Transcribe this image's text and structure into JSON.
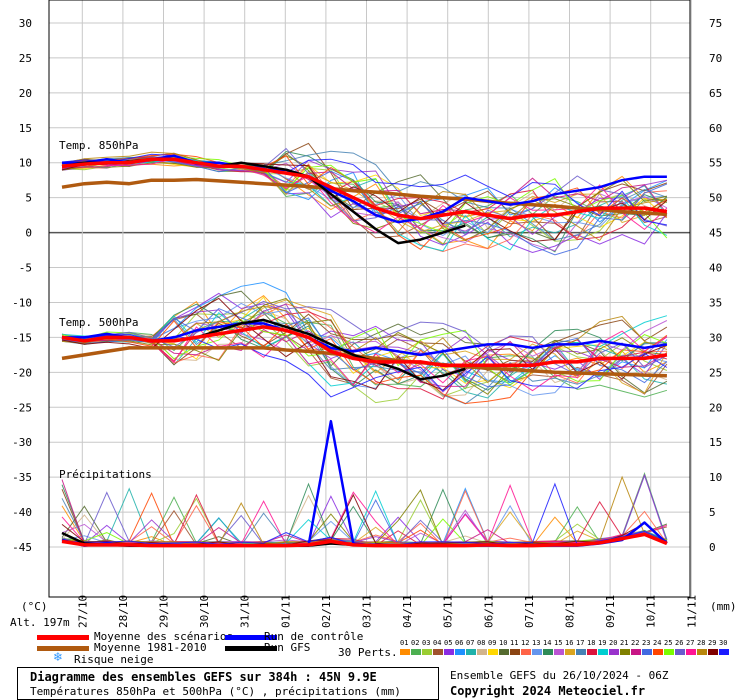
{
  "chart_data": {
    "type": "line",
    "title": "Diagramme des ensembles GEFS sur 384h : 45N 9.9E",
    "subtitle": "Températures 850hPa et 500hPa (°C) , précipitations (mm)",
    "left_axis": {
      "unit": "(°C)",
      "ticks": [
        30,
        25,
        20,
        15,
        10,
        5,
        0,
        -5,
        -10,
        -15,
        -20,
        -25,
        -30,
        -35,
        -40,
        -45
      ],
      "range": [
        -45,
        30
      ]
    },
    "right_axis": {
      "unit": "(mm)",
      "ticks": [
        75,
        70,
        65,
        60,
        55,
        50,
        45,
        40,
        35,
        30,
        25,
        20,
        15,
        10,
        5,
        0
      ],
      "range": [
        0,
        75
      ]
    },
    "x_ticks": [
      "27/10",
      "28/10",
      "29/10",
      "30/10",
      "31/10",
      "01/11",
      "02/11",
      "03/11",
      "04/11",
      "05/11",
      "06/11",
      "07/11",
      "08/11",
      "09/11",
      "10/11",
      "11/11"
    ],
    "x_unit": "days",
    "x_range": [
      0,
      16
    ],
    "section_labels": [
      "Temp. 850hPa",
      "Temp. 500hPa",
      "Précipitations"
    ],
    "altitude": "Alt. 197m",
    "grid": true,
    "series": [
      {
        "name": "Moyenne des scénarios",
        "color": "#ff0000",
        "t850": [
          9.5,
          9.8,
          10.0,
          10.0,
          10.5,
          10.5,
          10.0,
          9.5,
          9.5,
          9.0,
          8.5,
          8.0,
          6.5,
          5.0,
          3.5,
          2.5,
          2.0,
          2.5,
          3.0,
          2.5,
          2.0,
          2.5,
          2.5,
          3.0,
          3.5,
          3.5,
          3.5,
          3.0
        ],
        "t500": [
          -15.0,
          -15.5,
          -15.0,
          -15.0,
          -15.5,
          -15.5,
          -15.0,
          -14.5,
          -14.0,
          -13.5,
          -14.0,
          -15.0,
          -17.0,
          -18.0,
          -18.5,
          -18.5,
          -18.5,
          -19.0,
          -19.0,
          -19.0,
          -19.0,
          -19.0,
          -18.5,
          -18.5,
          -18.0,
          -18.0,
          -18.0,
          -17.5
        ],
        "precip": [
          0.8,
          0.3,
          0.3,
          0.3,
          0.2,
          0.2,
          0.2,
          0.2,
          0.2,
          0.2,
          0.2,
          0.3,
          0.8,
          0.3,
          0.2,
          0.2,
          0.2,
          0.2,
          0.2,
          0.3,
          0.2,
          0.2,
          0.3,
          0.3,
          0.6,
          1.2,
          1.8,
          0.5
        ]
      },
      {
        "name": "Moyenne 1981-2010",
        "color": "#b05a10",
        "t850": [
          6.5,
          7.0,
          7.2,
          7.0,
          7.5,
          7.5,
          7.6,
          7.4,
          7.2,
          7.0,
          6.8,
          6.6,
          6.3,
          6.0,
          5.8,
          5.5,
          5.2,
          5.0,
          4.8,
          4.5,
          4.2,
          4.0,
          3.8,
          3.5,
          3.3,
          3.0,
          2.8,
          2.6
        ],
        "t500": [
          -18.0,
          -17.5,
          -17.0,
          -16.5,
          -16.5,
          -16.5,
          -16.5,
          -16.5,
          -16.5,
          -16.5,
          -16.8,
          -17.0,
          -17.3,
          -17.6,
          -18.0,
          -18.3,
          -18.6,
          -18.9,
          -19.2,
          -19.4,
          -19.6,
          -19.8,
          -20.0,
          -20.1,
          -20.2,
          -20.3,
          -20.4,
          -20.5
        ]
      },
      {
        "name": "Run de contrôle",
        "color": "#0000ff",
        "t850": [
          10.0,
          10.0,
          10.5,
          10.0,
          10.5,
          11.0,
          10.0,
          10.0,
          9.5,
          9.0,
          9.0,
          8.0,
          6.0,
          4.5,
          2.5,
          1.5,
          2.0,
          3.0,
          5.0,
          4.5,
          4.0,
          4.5,
          5.5,
          6.0,
          6.5,
          7.5,
          8.0,
          8.0
        ],
        "t500": [
          -15.0,
          -15.0,
          -14.5,
          -15.0,
          -15.5,
          -15.0,
          -14.0,
          -13.5,
          -13.0,
          -13.0,
          -14.0,
          -15.0,
          -16.5,
          -17.0,
          -16.5,
          -17.0,
          -17.5,
          -17.0,
          -16.5,
          -16.0,
          -16.0,
          -16.5,
          -16.0,
          -16.0,
          -15.5,
          -16.0,
          -16.5,
          -16.0
        ],
        "precip": [
          1.0,
          0.2,
          0.5,
          0.2,
          0.2,
          0.2,
          0.2,
          0.2,
          0.2,
          0.2,
          0.2,
          0.2,
          18.0,
          0.5,
          0.2,
          0.2,
          0.2,
          0.2,
          0.2,
          0.2,
          0.2,
          0.2,
          0.2,
          0.2,
          0.5,
          1.0,
          3.5,
          0.5
        ]
      },
      {
        "name": "Run GFS",
        "color": "#000000",
        "t850": [
          9.5,
          10.0,
          10.0,
          10.0,
          10.5,
          10.5,
          10.0,
          9.5,
          10.0,
          9.5,
          9.0,
          8.0,
          5.5,
          3.0,
          0.5,
          -1.5,
          -1.0,
          0.0,
          1.0
        ],
        "t500": [
          -15.0,
          -15.5,
          -15.0,
          -15.0,
          -15.5,
          -15.5,
          -15.0,
          -14.0,
          -13.0,
          -12.5,
          -13.5,
          -14.5,
          -16.0,
          -17.5,
          -18.5,
          -19.5,
          -21.0,
          -20.5,
          -19.5
        ],
        "precip": [
          2.0,
          0.5,
          0.3,
          0.2,
          0.2,
          0.2,
          0.2,
          0.2,
          0.2,
          0.2,
          0.2,
          0.2,
          0.5,
          0.3,
          0.2,
          0.2,
          0.2,
          0.2,
          0.2
        ]
      }
    ],
    "perturbation_count": 30,
    "perturbation_labels": [
      "01",
      "02",
      "03",
      "04",
      "05",
      "06",
      "07",
      "08",
      "09",
      "10",
      "11",
      "12",
      "13",
      "14",
      "15",
      "16",
      "17",
      "18",
      "19",
      "20",
      "21",
      "22",
      "23",
      "24",
      "25",
      "26",
      "27",
      "28",
      "29",
      "30"
    ],
    "perturbation_colors": [
      "#ff8c00",
      "#4caf50",
      "#9acd32",
      "#a0522d",
      "#8a2be2",
      "#1e90ff",
      "#20b2aa",
      "#d2b48c",
      "#ffd700",
      "#556b2f",
      "#8b4513",
      "#ff6347",
      "#6495ed",
      "#2e8b57",
      "#ba55d3",
      "#daa520",
      "#4682b4",
      "#dc143c",
      "#00ced1",
      "#9932cc",
      "#808000",
      "#c71585",
      "#4169e1",
      "#ff4500",
      "#7cfc00",
      "#6a5acd",
      "#ff1493",
      "#b8860b",
      "#800000",
      "#1a1aff"
    ]
  },
  "legend": {
    "mean": "Moyenne des scénarios",
    "climo": "Moyenne 1981-2010",
    "snow": "Risque neige",
    "control": "Run de contrôle",
    "gfs": "Run GFS",
    "perts": "30 Perts."
  },
  "caption": {
    "title": "Diagramme des ensembles GEFS sur 384h : 45N 9.9E",
    "subtitle": "Températures 850hPa et 500hPa (°C) , précipitations (mm)"
  },
  "run_info": "Ensemble GEFS du 26/10/2024 - 06Z",
  "copyright": "Copyright 2024 Meteociel.fr",
  "colors": {
    "mean": "#ff0000",
    "climo": "#b05a10",
    "control": "#0000ff",
    "gfs": "#000000",
    "snow": "#3399ff"
  }
}
